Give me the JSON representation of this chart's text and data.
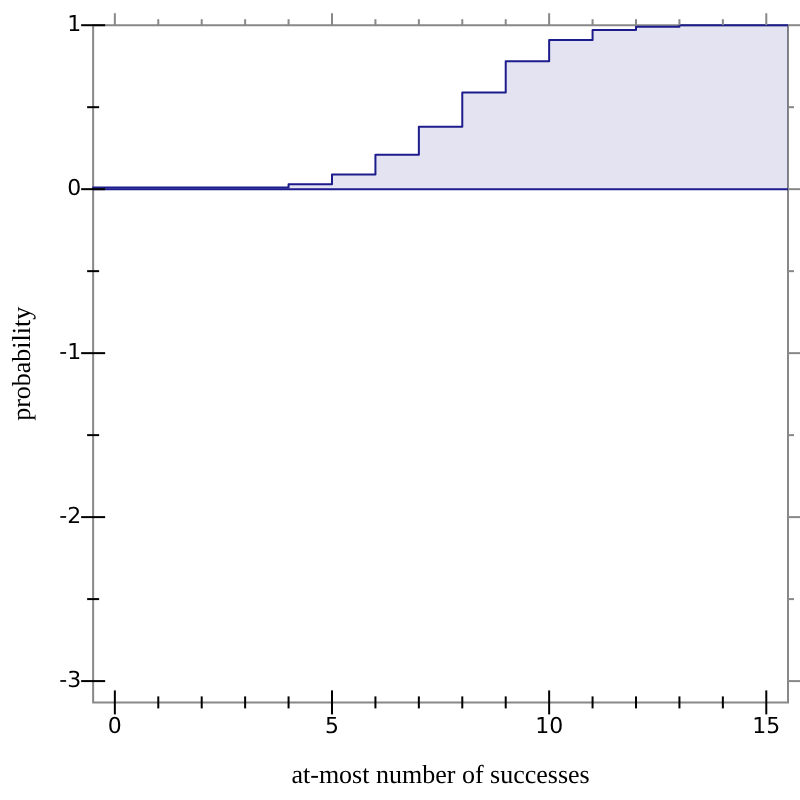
{
  "chart_data": {
    "type": "step",
    "xlabel": "at-most number of successes",
    "ylabel": "probability",
    "x": [
      -0.5,
      4,
      5,
      6,
      7,
      8,
      9,
      10,
      11,
      12,
      13,
      14,
      15,
      15.5
    ],
    "series": [
      {
        "color": "#1c1c8c",
        "values": [
          0,
          0.01,
          0.03,
          0.09,
          0.21,
          0.38,
          0.59,
          0.78,
          0.91,
          0.97,
          0.99,
          1.0,
          1.0,
          1.0
        ]
      }
    ],
    "xlim": [
      -0.5,
      15.5
    ],
    "ylim": [
      -3.13,
      1
    ],
    "xticks": [
      0,
      {
        "value": 1,
        "label": null
      },
      {
        "value": 2,
        "label": null
      },
      {
        "value": 3,
        "label": null
      },
      {
        "value": 4,
        "label": null
      },
      5,
      {
        "value": 6,
        "label": null
      },
      {
        "value": 7,
        "label": null
      },
      {
        "value": 8,
        "label": null
      },
      {
        "value": 9,
        "label": null
      },
      10,
      {
        "value": 11,
        "label": null
      },
      {
        "value": 12,
        "label": null
      },
      {
        "value": 13,
        "label": null
      },
      {
        "value": 14,
        "label": null
      },
      15
    ],
    "yticks": [
      -3,
      {
        "value": -2.5,
        "label": null
      },
      -2,
      {
        "value": -1.5,
        "label": null
      },
      -1,
      {
        "value": -0.5,
        "label": null
      },
      0,
      {
        "value": 0.5,
        "label": null
      },
      1
    ],
    "ref_lines": [
      {
        "axis": "y",
        "value": 0,
        "color": "#1c1c8c"
      }
    ],
    "grid": false,
    "legend": false,
    "marker": "none",
    "line_style": "solid"
  }
}
